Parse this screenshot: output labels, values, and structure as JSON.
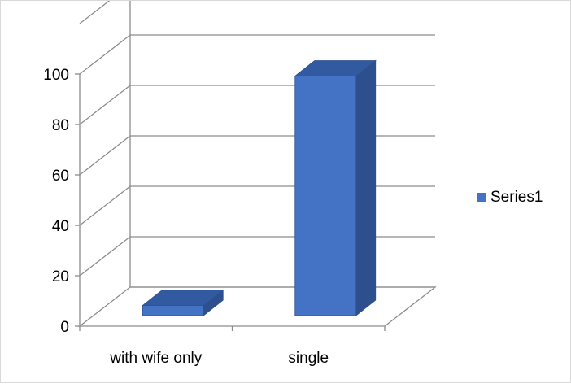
{
  "chart_data": {
    "type": "bar",
    "categories": [
      "with wife only",
      "single"
    ],
    "series": [
      {
        "name": "Series1",
        "values": [
          4,
          95
        ],
        "color": "#4472C4"
      }
    ],
    "yticks": [
      "0",
      "20",
      "40",
      "60",
      "80",
      "100"
    ],
    "ylim": [
      0,
      120
    ],
    "grid": true,
    "legend": "right",
    "three_d": true
  }
}
